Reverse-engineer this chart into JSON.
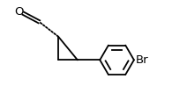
{
  "background": "#ffffff",
  "bond_color": "#000000",
  "line_width": 1.3,
  "fig_width": 2.12,
  "fig_height": 0.98,
  "dpi": 100,
  "label_O": "O",
  "label_Br": "Br",
  "font_size_O": 9.5,
  "font_size_Br": 9.5,
  "xlim": [
    0.0,
    8.5
  ],
  "ylim": [
    0.5,
    4.5
  ]
}
